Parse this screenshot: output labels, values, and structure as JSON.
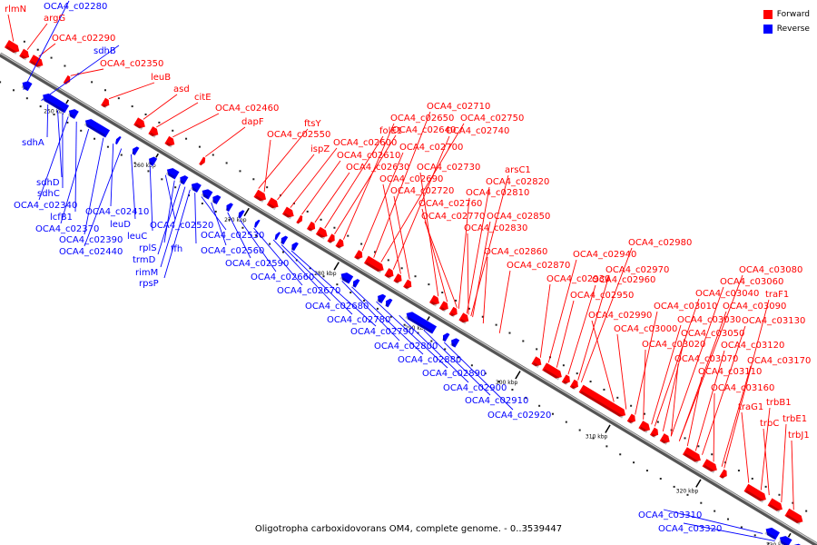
{
  "caption": "Oligotropha carboxidovorans OM4, complete genome. - 0..3539447",
  "legend": [
    {
      "label": "Forward",
      "color": "#ff0000"
    },
    {
      "label": "Reverse",
      "color": "#0000ff"
    }
  ],
  "colors": {
    "forward": "#ff0000",
    "reverse": "#0000ff",
    "backbone": "#777777"
  },
  "ticks": [
    "250 kbp",
    "260 kbp",
    "270 kbp",
    "280 kbp",
    "290 kbp",
    "300 kbp",
    "310 kbp",
    "320 kbp",
    "330 kbp"
  ],
  "forward_labels": [
    "rlmN",
    "argG",
    "OCA4_c02290",
    "OCA4_c02350",
    "leuB",
    "asd",
    "citE",
    "OCA4_c02460",
    "dapF",
    "ftsY",
    "OCA4_c02550",
    "ispZ",
    "OCA4_c02600",
    "OCA4_c02610",
    "OCA4_c02630",
    "folE1",
    "OCA4_c02640",
    "OCA4_c02650",
    "OCA4_c02700",
    "OCA4_c02710",
    "OCA4_c02750",
    "OCA4_c02740",
    "OCA4_c02690",
    "OCA4_c02720",
    "OCA4_c02730",
    "OCA4_c02760",
    "OCA4_c02770",
    "OCA4_c02810",
    "OCA4_c02820",
    "arsC1",
    "OCA4_c02830",
    "OCA4_c02850",
    "OCA4_c02860",
    "OCA4_c02870",
    "OCA4_c02930",
    "OCA4_c02940",
    "OCA4_c02950",
    "OCA4_c02960",
    "OCA4_c02970",
    "OCA4_c02980",
    "OCA4_c02990",
    "OCA4_c03000",
    "OCA4_c03010",
    "OCA4_c03020",
    "OCA4_c03030",
    "OCA4_c03040",
    "OCA4_c03050",
    "OCA4_c03060",
    "OCA4_c03070",
    "OCA4_c03080",
    "OCA4_c03090",
    "OCA4_c03110",
    "OCA4_c03120",
    "OCA4_c03130",
    "OCA4_c03160",
    "OCA4_c03170",
    "traF1",
    "traG1",
    "trbB1",
    "trbC",
    "trbE1",
    "trbJ1"
  ],
  "reverse_labels": [
    "OCA4_c02280",
    "sdhB",
    "sdhA",
    "sdhD",
    "sdhC",
    "OCA4_c02340",
    "lcfB1",
    "OCA4_c02370",
    "OCA4_c02390",
    "OCA4_c02410",
    "leuD",
    "OCA4_c02440",
    "leuC",
    "OCA4_c02520",
    "rplS",
    "trmD",
    "rimM",
    "rpsP",
    "ffh",
    "OCA4_c02530",
    "OCA4_c02560",
    "OCA4_c02590",
    "OCA4_c02660",
    "OCA4_c02670",
    "OCA4_c02680",
    "OCA4_c02780",
    "OCA4_c02790",
    "OCA4_c02800",
    "OCA4_c02880",
    "OCA4_c02890",
    "OCA4_c02900",
    "OCA4_c02910",
    "OCA4_c02920",
    "OCA4_c03310",
    "OCA4_c03320"
  ]
}
